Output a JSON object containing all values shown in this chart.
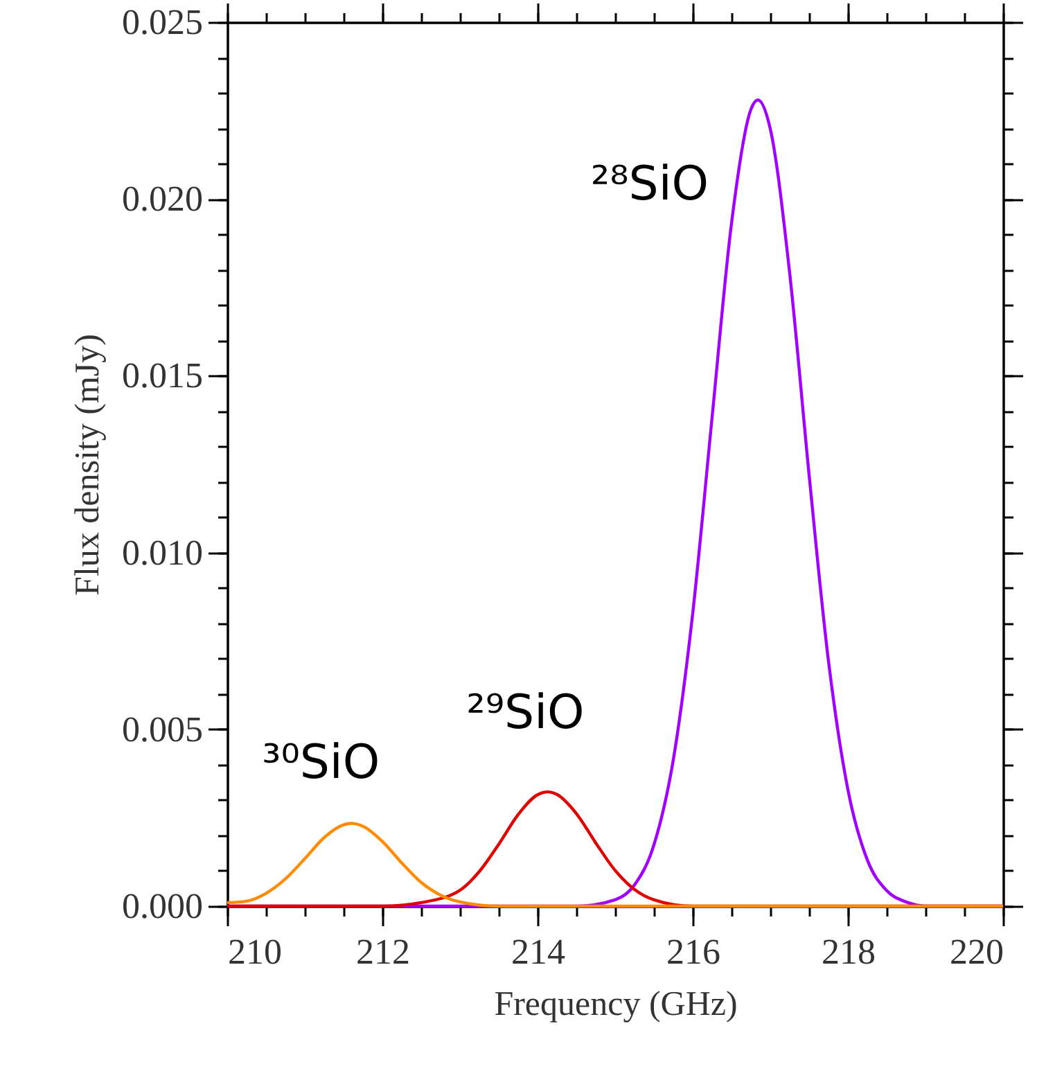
{
  "chart_data": {
    "type": "line",
    "xlabel": "Frequency (GHz)",
    "ylabel": "Flux density (mJy)",
    "xlim": [
      210,
      220
    ],
    "xticks": [
      210,
      212,
      214,
      216,
      218,
      220
    ],
    "ylim": [
      0,
      0.025
    ],
    "yticks": [
      {
        "value": 0,
        "label": "0.000"
      },
      {
        "value": 0.005,
        "label": "0.005"
      },
      {
        "value": 0.01,
        "label": "0.010"
      },
      {
        "value": 0.015,
        "label": "0.015"
      },
      {
        "value": 0.02,
        "label": "0.020"
      },
      {
        "value": 0.025,
        "label": "0.025"
      }
    ],
    "marker": "none",
    "line_style": "solid",
    "series": [
      {
        "name": "²⁸SiO",
        "color": "#a100ff",
        "x": [
          210,
          213.5,
          214,
          214.5,
          215,
          215.25,
          215.5,
          215.75,
          216,
          216.25,
          216.5,
          216.75,
          216.84,
          217,
          217.25,
          217.5,
          217.75,
          218,
          218.25,
          218.5,
          218.75,
          219,
          219.5,
          220
        ],
        "values": [
          0,
          0,
          0,
          0,
          0.00018,
          0.0006,
          0.00173,
          0.00414,
          0.00828,
          0.01383,
          0.01931,
          0.02253,
          0.0228,
          0.02198,
          0.0179,
          0.0122,
          0.00693,
          0.0033,
          0.00131,
          0.00044,
          0.00012,
          0,
          0,
          0
        ]
      },
      {
        "name": "²⁹SiO",
        "color": "#e00000",
        "x": [
          210,
          212,
          212.5,
          213,
          213.25,
          213.5,
          213.75,
          214,
          214.13,
          214.25,
          214.5,
          214.75,
          215,
          215.25,
          215.5,
          216,
          216.5,
          220
        ],
        "values": [
          0,
          0,
          0.0001,
          0.00045,
          0.00098,
          0.00175,
          0.00259,
          0.00315,
          0.00323,
          0.00316,
          0.00262,
          0.00179,
          0.00101,
          0.00047,
          0.00018,
          0,
          0,
          0
        ]
      },
      {
        "name": "³⁰SiO",
        "color": "#ff8c00",
        "x": [
          210,
          210.25,
          210.5,
          210.75,
          211,
          211.25,
          211.5,
          211.6,
          211.75,
          212,
          212.25,
          212.5,
          212.75,
          213,
          213.5,
          214,
          220
        ],
        "values": [
          0.0001,
          0.00014,
          0.00036,
          0.00077,
          0.00134,
          0.00194,
          0.0023,
          0.00234,
          0.00226,
          0.00183,
          0.00122,
          0.00067,
          0.00031,
          0.00012,
          0,
          0,
          0
        ]
      }
    ]
  }
}
